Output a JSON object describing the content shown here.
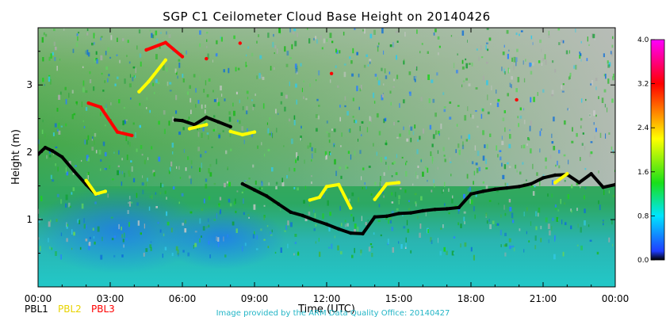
{
  "chart_data": {
    "type": "heatmap",
    "title": "SGP C1 Ceilometer Cloud Base Height on 20140426",
    "xlabel": "Time (UTC)",
    "ylabel": "Height (m)",
    "x_range_hours": [
      0,
      24
    ],
    "y_range": [
      0,
      3.85
    ],
    "x_ticks": [
      "00:00",
      "03:00",
      "06:00",
      "09:00",
      "12:00",
      "15:00",
      "18:00",
      "21:00",
      "00:00"
    ],
    "y_ticks": [
      "1",
      "2",
      "3"
    ],
    "y_tick_values": [
      1,
      2,
      3
    ],
    "colorbar": {
      "range": [
        0.0,
        4.0
      ],
      "ticks": [
        "0.0",
        "0.8",
        "1.6",
        "2.4",
        "3.2",
        "4.0"
      ],
      "colormap": [
        "#000000",
        "#1f3dff",
        "#00e5ff",
        "#19e019",
        "#ffff00",
        "#ff0000",
        "#ff00ff"
      ]
    },
    "legend": [
      {
        "name": "PBL1",
        "color": "#000000"
      },
      {
        "name": "PBL2",
        "color": "#ffff00"
      },
      {
        "name": "PBL3",
        "color": "#ff0000"
      }
    ],
    "series": [
      {
        "name": "PBL1",
        "color": "#000000",
        "x": [
          0.0,
          0.3,
          0.6,
          1.0,
          1.5,
          2.0,
          2.4,
          5.7,
          6.0,
          6.5,
          7.0,
          7.5,
          8.0,
          8.5,
          9.0,
          9.5,
          10.0,
          10.5,
          11.0,
          11.5,
          12.0,
          12.5,
          13.0,
          13.5,
          14.0,
          14.5,
          15.0,
          15.5,
          16.0,
          16.5,
          17.0,
          17.5,
          18.0,
          18.5,
          19.0,
          19.5,
          20.0,
          20.5,
          21.0,
          21.5,
          22.0,
          22.5,
          23.0,
          23.5,
          24.0
        ],
        "y": [
          1.97,
          2.07,
          2.02,
          1.93,
          1.72,
          1.52,
          1.38,
          2.48,
          2.47,
          2.41,
          2.52,
          2.45,
          2.38,
          1.53,
          1.44,
          1.35,
          1.23,
          1.11,
          1.06,
          0.99,
          0.93,
          0.86,
          0.8,
          0.79,
          1.04,
          1.05,
          1.09,
          1.1,
          1.13,
          1.15,
          1.16,
          1.18,
          1.38,
          1.42,
          1.45,
          1.47,
          1.49,
          1.53,
          1.62,
          1.66,
          1.67,
          1.55,
          1.68,
          1.48,
          1.52
        ]
      },
      {
        "name": "PBL2",
        "color": "#ffff00",
        "x": [
          2.0,
          2.4,
          2.8,
          4.2,
          4.6,
          5.3,
          6.3,
          7.0,
          8.0,
          8.5,
          9.0,
          11.3,
          11.7,
          12.0,
          12.5,
          13.0,
          14.0,
          14.5,
          15.0,
          21.5,
          22.0
        ],
        "y": [
          1.58,
          1.38,
          1.42,
          2.9,
          3.05,
          3.37,
          2.35,
          2.41,
          2.31,
          2.26,
          2.3,
          1.29,
          1.33,
          1.49,
          1.52,
          1.17,
          1.3,
          1.53,
          1.55,
          1.55,
          1.68
        ]
      },
      {
        "name": "PBL3",
        "color": "#ff0000",
        "x": [
          2.1,
          2.6,
          3.3,
          3.9,
          4.5,
          5.3,
          6.0,
          7.0,
          8.4,
          12.2,
          19.9
        ],
        "y": [
          2.73,
          2.67,
          2.3,
          2.25,
          3.52,
          3.63,
          3.42,
          3.39,
          3.62,
          3.17,
          2.78
        ]
      }
    ]
  },
  "footer": {
    "credit": "Image provided by the ARM Data Quality Office: 20140427"
  }
}
